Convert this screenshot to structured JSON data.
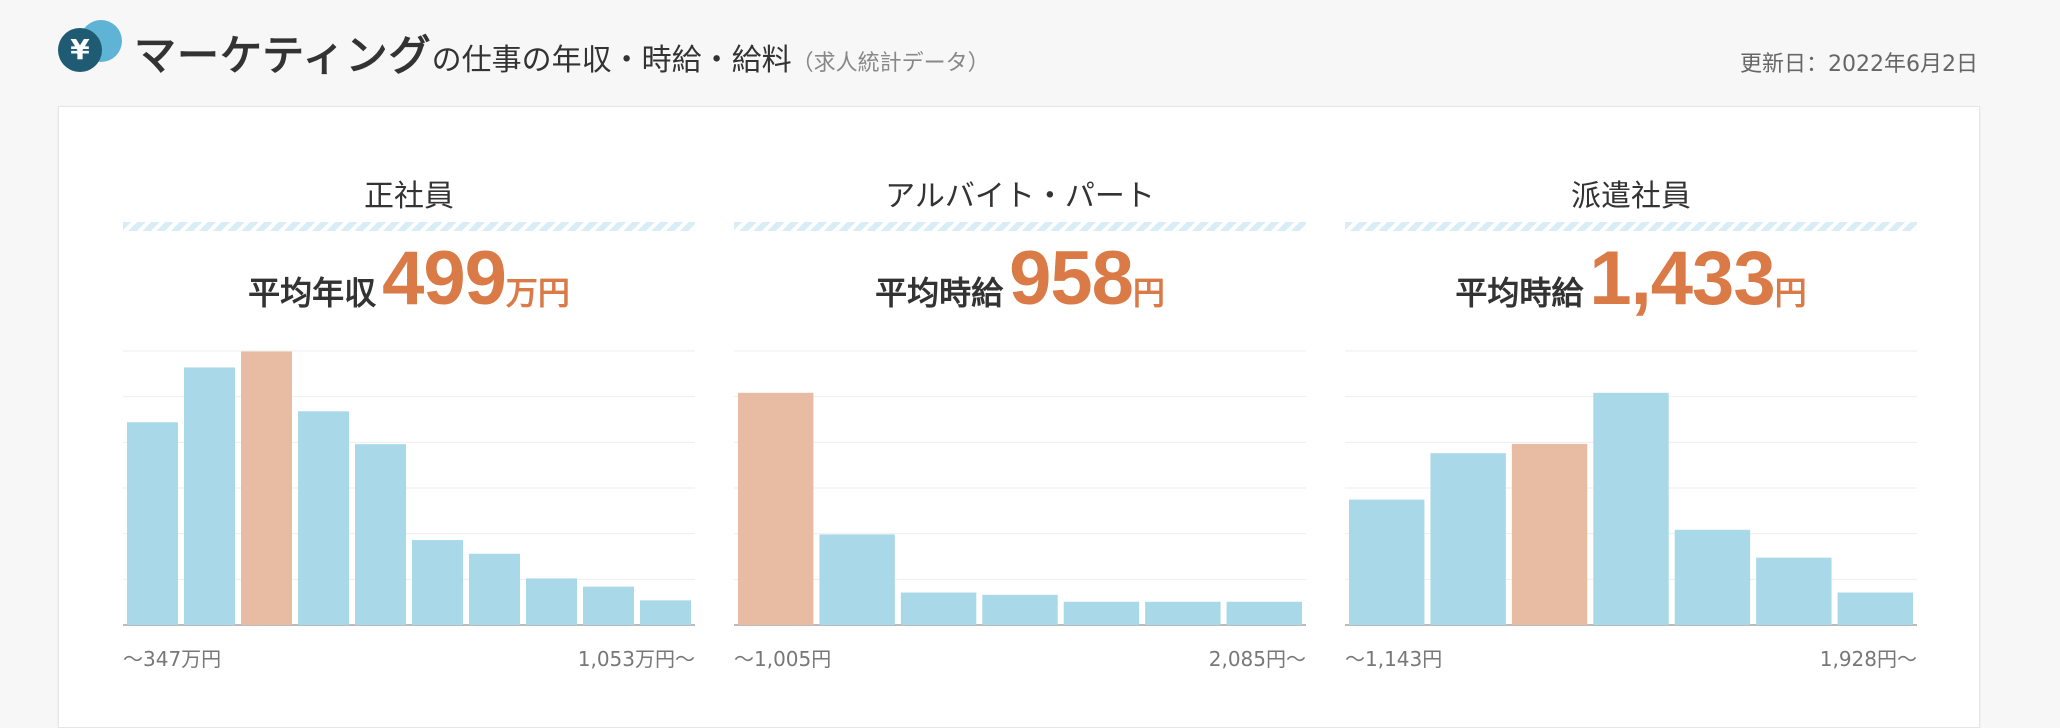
{
  "header": {
    "icon": "yen-coin-icon",
    "icon_glyph": "¥",
    "title_main": "マーケティング",
    "title_sub": "の仕事の年収・時給・給料",
    "title_paren": "（求人統計データ）",
    "updated": "更新日：2022年6月2日"
  },
  "colors": {
    "bar": "#a9d9e8",
    "highlight": "#e8bba3",
    "accent": "#d97a47"
  },
  "chart_data": [
    {
      "type": "bar",
      "title": "正社員",
      "avg_label": "平均年収",
      "avg_value": "499",
      "avg_unit": "万円",
      "values": [
        0.74,
        0.94,
        1.0,
        0.78,
        0.66,
        0.31,
        0.26,
        0.17,
        0.14,
        0.09
      ],
      "highlight_index": 2,
      "ylim": [
        0,
        1
      ],
      "range_low": "〜347万円",
      "range_high": "1,053万円〜"
    },
    {
      "type": "bar",
      "title": "アルバイト・パート",
      "avg_label": "平均時給",
      "avg_value": "958",
      "avg_unit": "円",
      "values": [
        1.0,
        0.39,
        0.14,
        0.13,
        0.1,
        0.1,
        0.1
      ],
      "highlight_index": 0,
      "ylim": [
        0,
        1.18
      ],
      "range_low": "〜1,005円",
      "range_high": "2,085円〜"
    },
    {
      "type": "bar",
      "title": "派遣社員",
      "avg_label": "平均時給",
      "avg_value": "1,433",
      "avg_unit": "円",
      "values": [
        0.54,
        0.74,
        0.78,
        1.0,
        0.41,
        0.29,
        0.14
      ],
      "highlight_index": 2,
      "ylim": [
        0,
        1.18
      ],
      "range_low": "〜1,143円",
      "range_high": "1,928円〜"
    }
  ]
}
